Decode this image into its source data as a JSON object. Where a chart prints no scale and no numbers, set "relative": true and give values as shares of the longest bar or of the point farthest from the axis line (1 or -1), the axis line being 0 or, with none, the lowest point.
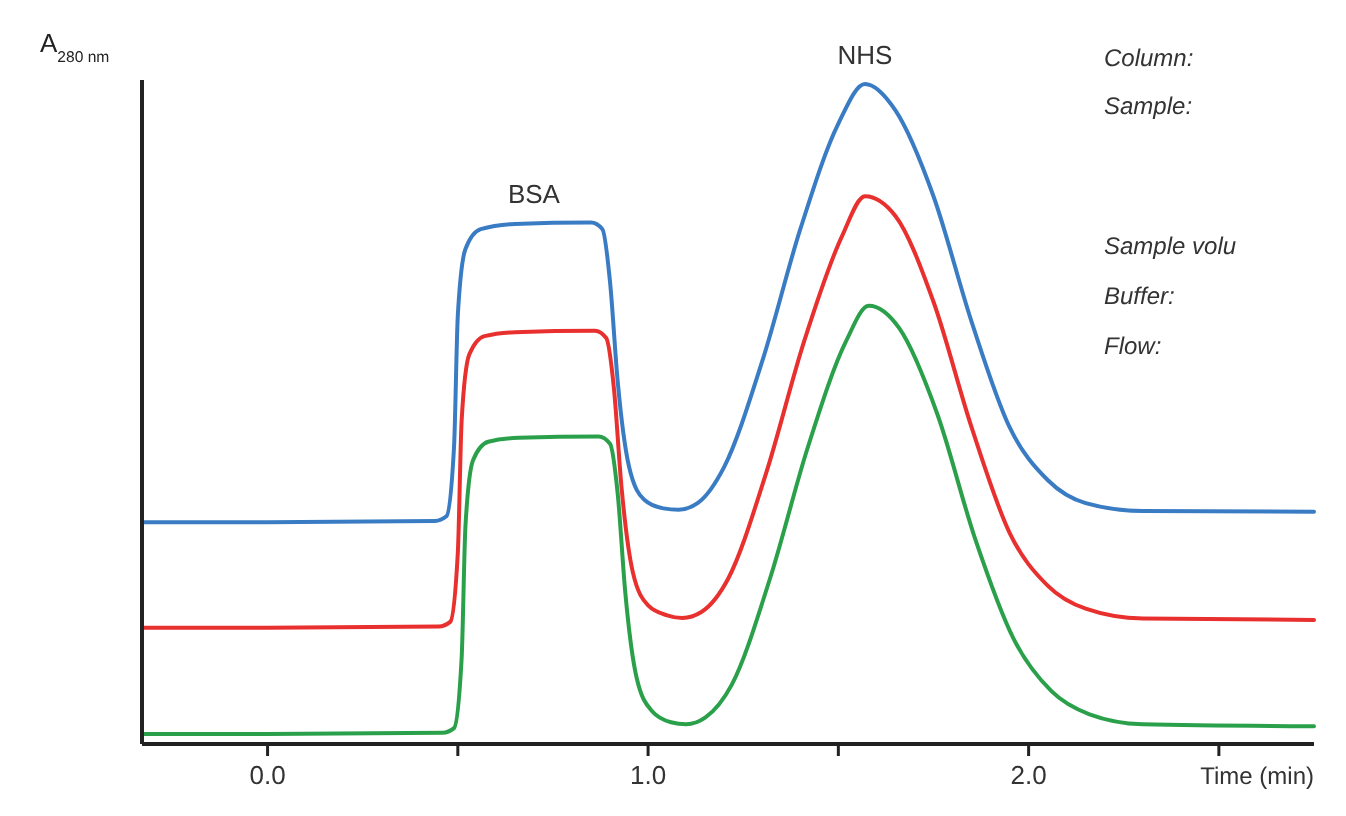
{
  "chart_data": {
    "type": "line",
    "relative": true,
    "xlabel": "Time (min)",
    "ylabel": "A$_{280 nm}$",
    "xlim": [
      -0.33,
      2.75
    ],
    "xticks": [
      {
        "value": 0,
        "label": "0.0"
      },
      {
        "value": 0.5,
        "label": null
      },
      {
        "value": 1,
        "label": "1.0"
      },
      {
        "value": 1.5,
        "label": null
      },
      {
        "value": 2,
        "label": "2.0"
      },
      {
        "value": 2.5,
        "label": null
      }
    ],
    "tick_labels": "x",
    "series": [
      {
        "color": "#3a7cc4",
        "x": [
          -0.33,
          0.0,
          0.44,
          0.47,
          0.49,
          0.5,
          0.52,
          0.56,
          0.65,
          0.85,
          0.88,
          0.9,
          0.92,
          0.95,
          0.99,
          1.04,
          1.08,
          1.13,
          1.2,
          1.3,
          1.4,
          1.5,
          1.57,
          1.65,
          1.75,
          1.85,
          1.95,
          2.05,
          2.15,
          2.3,
          2.75
        ],
        "values": [
          0.336,
          0.336,
          0.338,
          0.345,
          0.45,
          0.65,
          0.75,
          0.78,
          0.788,
          0.79,
          0.78,
          0.7,
          0.55,
          0.42,
          0.37,
          0.357,
          0.355,
          0.365,
          0.42,
          0.58,
          0.78,
          0.94,
          1.0,
          0.96,
          0.83,
          0.64,
          0.48,
          0.4,
          0.365,
          0.353,
          0.352
        ]
      },
      {
        "color": "#e8302e",
        "x": [
          -0.33,
          0.0,
          0.45,
          0.48,
          0.5,
          0.51,
          0.53,
          0.57,
          0.65,
          0.86,
          0.89,
          0.91,
          0.93,
          0.96,
          1.0,
          1.05,
          1.09,
          1.14,
          1.21,
          1.31,
          1.41,
          1.51,
          1.57,
          1.65,
          1.75,
          1.85,
          1.95,
          2.05,
          2.15,
          2.3,
          2.75
        ],
        "values": [
          0.176,
          0.176,
          0.178,
          0.185,
          0.29,
          0.49,
          0.59,
          0.618,
          0.624,
          0.626,
          0.615,
          0.54,
          0.39,
          0.26,
          0.21,
          0.195,
          0.191,
          0.2,
          0.25,
          0.41,
          0.61,
          0.77,
          0.83,
          0.8,
          0.67,
          0.48,
          0.32,
          0.24,
          0.205,
          0.19,
          0.188
        ]
      },
      {
        "color": "#2ba04a",
        "x": [
          -0.33,
          0.0,
          0.46,
          0.49,
          0.51,
          0.52,
          0.54,
          0.58,
          0.66,
          0.87,
          0.9,
          0.92,
          0.94,
          0.97,
          1.01,
          1.06,
          1.1,
          1.15,
          1.22,
          1.32,
          1.42,
          1.52,
          1.58,
          1.66,
          1.76,
          1.86,
          1.96,
          2.06,
          2.16,
          2.3,
          2.75
        ],
        "values": [
          0.015,
          0.015,
          0.017,
          0.024,
          0.13,
          0.33,
          0.43,
          0.458,
          0.464,
          0.466,
          0.455,
          0.38,
          0.23,
          0.1,
          0.05,
          0.033,
          0.03,
          0.04,
          0.09,
          0.25,
          0.45,
          0.61,
          0.664,
          0.63,
          0.5,
          0.31,
          0.16,
          0.08,
          0.045,
          0.03,
          0.027
        ]
      }
    ],
    "annotations": [
      {
        "text": "BSA",
        "x": 0.7,
        "y": 0.79
      },
      {
        "text": "NHS",
        "x": 1.57,
        "y": 1.0
      },
      "Column:",
      "Sample:",
      "Sample volu",
      "Buffer:",
      "Flow:"
    ]
  }
}
